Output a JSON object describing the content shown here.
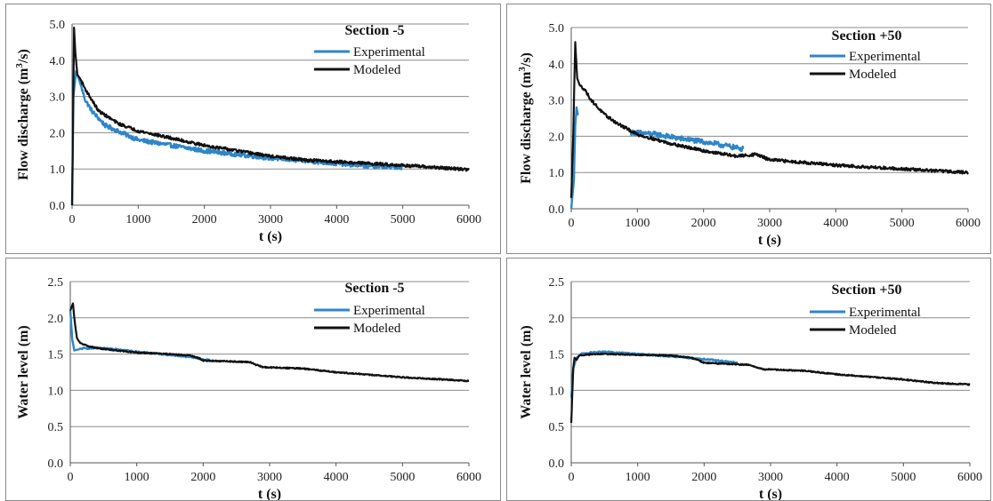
{
  "chart_data": [
    {
      "id": "q_minus5",
      "type": "line",
      "title": "Section -5",
      "xlabel": "t (s)",
      "ylabel_main": "Flow discharge (m",
      "ylabel_sup": "3",
      "ylabel_tail": "/s)",
      "xlim": [
        0,
        6000
      ],
      "ylim": [
        0,
        5
      ],
      "xticks": [
        "0",
        "1000",
        "2000",
        "3000",
        "4000",
        "5000",
        "6000"
      ],
      "yticks": [
        "0.0",
        "1.0",
        "2.0",
        "3.0",
        "4.0",
        "5.0"
      ],
      "grid": "horizontal",
      "legend": "top-right",
      "colors": {
        "experimental": "#2e86c8",
        "modeled": "#111111"
      },
      "series": [
        {
          "name": "Experimental",
          "x": [
            0,
            20,
            60,
            100,
            150,
            200,
            300,
            500,
            1000,
            2000,
            3000,
            4000,
            4500,
            5000
          ],
          "y": [
            0.0,
            3.0,
            3.7,
            3.5,
            3.2,
            2.9,
            2.6,
            2.2,
            1.8,
            1.5,
            1.3,
            1.15,
            1.08,
            1.05
          ],
          "noise": 0.06
        },
        {
          "name": "Modeled",
          "x": [
            0,
            30,
            50,
            80,
            120,
            200,
            400,
            700,
            1000,
            1500,
            2000,
            2500,
            3000,
            3500,
            4000,
            5000,
            6000
          ],
          "y": [
            0.0,
            4.9,
            4.2,
            3.6,
            3.5,
            3.2,
            2.6,
            2.25,
            2.05,
            1.85,
            1.65,
            1.5,
            1.35,
            1.25,
            1.2,
            1.1,
            0.98
          ],
          "noise": 0.04
        }
      ]
    },
    {
      "id": "q_plus50",
      "type": "line",
      "title": "Section +50",
      "xlabel": "t (s)",
      "ylabel_main": "Flow discharge (m",
      "ylabel_sup": "3",
      "ylabel_tail": "/s)",
      "xlim": [
        0,
        6000
      ],
      "ylim": [
        0,
        5
      ],
      "xticks": [
        "0",
        "1000",
        "2000",
        "3000",
        "4000",
        "5000",
        "6000"
      ],
      "yticks": [
        "0.0",
        "1.0",
        "2.0",
        "3.0",
        "4.0",
        "5.0"
      ],
      "grid": "horizontal",
      "legend": "top-right",
      "colors": {
        "experimental": "#2e86c8",
        "modeled": "#111111"
      },
      "series": [
        {
          "name": "Experimental",
          "x": [
            0,
            40,
            60,
            80,
            100,
            110,
            900,
            1000,
            1300,
            1600,
            2000,
            2300,
            2600
          ],
          "y": [
            0.0,
            0.8,
            2.3,
            2.8,
            2.6,
            2.6,
            2.1,
            2.1,
            2.05,
            1.95,
            1.85,
            1.75,
            1.65
          ],
          "noise": 0.07,
          "breakAfter": 5
        },
        {
          "name": "Modeled",
          "x": [
            0,
            30,
            60,
            90,
            130,
            200,
            300,
            500,
            700,
            1000,
            1500,
            2000,
            2500,
            2800,
            3000,
            3500,
            4000,
            5000,
            6000
          ],
          "y": [
            0.3,
            2.0,
            4.6,
            3.6,
            3.4,
            3.3,
            3.0,
            2.6,
            2.35,
            2.05,
            1.8,
            1.6,
            1.45,
            1.5,
            1.35,
            1.28,
            1.2,
            1.1,
            1.0
          ],
          "noise": 0.04
        }
      ]
    },
    {
      "id": "h_minus5",
      "type": "line",
      "title": "Section -5",
      "xlabel": "t (s)",
      "ylabel_main": "Water level (m)",
      "ylabel_sup": "",
      "ylabel_tail": "",
      "xlim": [
        0,
        6000
      ],
      "ylim": [
        0,
        2.5
      ],
      "xticks": [
        "0",
        "1000",
        "2000",
        "3000",
        "4000",
        "5000",
        "6000"
      ],
      "yticks": [
        "0.0",
        "0.5",
        "1.0",
        "1.5",
        "2.0",
        "2.5"
      ],
      "grid": "horizontal",
      "legend": "top-right",
      "colors": {
        "experimental": "#2e86c8",
        "modeled": "#111111"
      },
      "series": [
        {
          "name": "Experimental",
          "x": [
            0,
            30,
            60,
            100,
            200,
            400,
            700,
            1000,
            1500,
            1900,
            2000,
            2100
          ],
          "y": [
            2.1,
            1.7,
            1.55,
            1.56,
            1.58,
            1.58,
            1.57,
            1.53,
            1.49,
            1.45,
            1.42,
            1.42
          ],
          "noise": 0.01
        },
        {
          "name": "Modeled",
          "x": [
            0,
            40,
            60,
            80,
            100,
            150,
            300,
            500,
            1000,
            1500,
            1800,
            1950,
            2000,
            2700,
            2800,
            2900,
            3500,
            4000,
            5000,
            6000
          ],
          "y": [
            2.1,
            2.2,
            2.0,
            1.85,
            1.72,
            1.65,
            1.6,
            1.57,
            1.52,
            1.5,
            1.48,
            1.44,
            1.41,
            1.39,
            1.35,
            1.32,
            1.3,
            1.25,
            1.18,
            1.13
          ],
          "noise": 0.008
        }
      ]
    },
    {
      "id": "h_plus50",
      "type": "line",
      "title": "Section +50",
      "xlabel": "t (s)",
      "ylabel_main": "Water level (m)",
      "ylabel_sup": "",
      "ylabel_tail": "",
      "xlim": [
        0,
        6000
      ],
      "ylim": [
        0,
        2.5
      ],
      "xticks": [
        "0",
        "1000",
        "2000",
        "3000",
        "4000",
        "5000",
        "6000"
      ],
      "yticks": [
        "0.0",
        "0.5",
        "1.0",
        "1.5",
        "2.0",
        "2.5"
      ],
      "grid": "horizontal",
      "legend": "top-right",
      "colors": {
        "experimental": "#2e86c8",
        "modeled": "#111111"
      },
      "series": [
        {
          "name": "Experimental",
          "x": [
            0,
            30,
            80,
            150,
            300,
            500,
            1000,
            1500,
            2000,
            2500
          ],
          "y": [
            0.9,
            1.3,
            1.45,
            1.5,
            1.52,
            1.53,
            1.5,
            1.47,
            1.43,
            1.38
          ],
          "noise": 0.01
        },
        {
          "name": "Modeled",
          "x": [
            0,
            30,
            50,
            80,
            120,
            200,
            400,
            600,
            1000,
            1500,
            1800,
            1950,
            2000,
            2700,
            2800,
            2900,
            3500,
            4000,
            5000,
            5500,
            6000
          ],
          "y": [
            0.55,
            1.3,
            1.45,
            1.42,
            1.48,
            1.49,
            1.5,
            1.5,
            1.49,
            1.48,
            1.45,
            1.4,
            1.38,
            1.35,
            1.31,
            1.29,
            1.27,
            1.22,
            1.15,
            1.1,
            1.08
          ],
          "noise": 0.008
        }
      ]
    }
  ]
}
